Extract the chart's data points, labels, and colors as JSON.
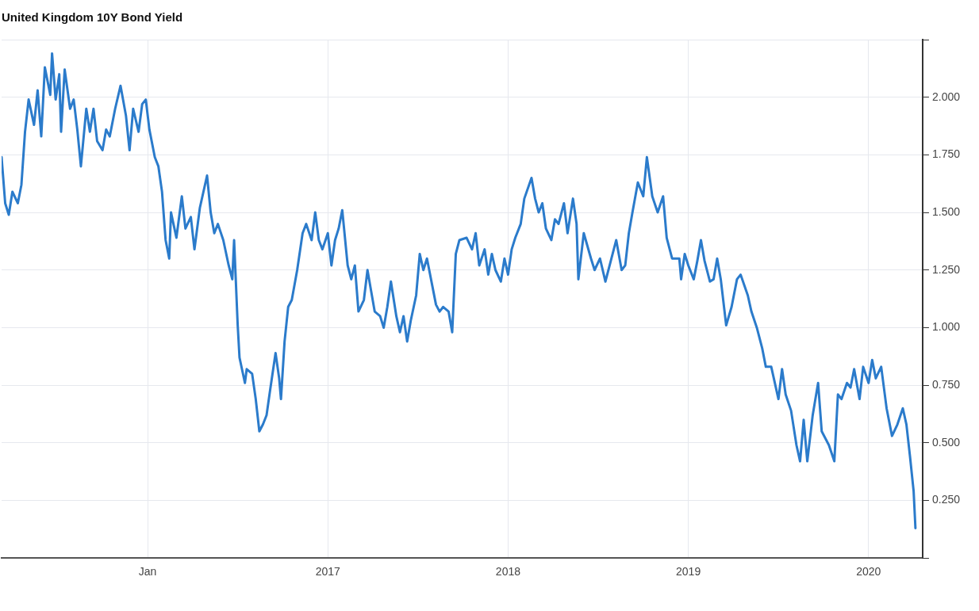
{
  "chart_data": {
    "type": "line",
    "title": "United Kingdom 10Y Bond Yield",
    "color": "#2b7bcb",
    "marker": "none",
    "line_style": "solid",
    "grid": true,
    "legend": false,
    "xlim": [
      2015.19,
      2020.3
    ],
    "xticks": [
      {
        "value": 2016,
        "label": "Jan"
      },
      {
        "value": 2017,
        "label": "2017"
      },
      {
        "value": 2018,
        "label": "2018"
      },
      {
        "value": 2019,
        "label": "2019"
      },
      {
        "value": 2020,
        "label": "2020"
      }
    ],
    "ylim": [
      0,
      2.25
    ],
    "yticks": [
      {
        "value": 0,
        "label": null
      },
      {
        "value": 0.25,
        "label": "0.250"
      },
      {
        "value": 0.5,
        "label": "0.500"
      },
      {
        "value": 0.75,
        "label": "0.750"
      },
      {
        "value": 1,
        "label": "1.000"
      },
      {
        "value": 1.25,
        "label": "1.250"
      },
      {
        "value": 1.5,
        "label": "1.500"
      },
      {
        "value": 1.75,
        "label": "1.750"
      },
      {
        "value": 2,
        "label": "2.000"
      },
      {
        "value": 2.25,
        "label": null
      }
    ],
    "x": [
      2015.19,
      2015.21,
      2015.23,
      2015.25,
      2015.28,
      2015.3,
      2015.32,
      2015.34,
      2015.37,
      2015.39,
      2015.41,
      2015.43,
      2015.46,
      2015.47,
      2015.49,
      2015.51,
      2015.52,
      2015.54,
      2015.57,
      2015.59,
      2015.61,
      2015.63,
      2015.66,
      2015.68,
      2015.7,
      2015.72,
      2015.75,
      2015.77,
      2015.79,
      2015.82,
      2015.85,
      2015.88,
      2015.9,
      2015.92,
      2015.95,
      2015.97,
      2015.99,
      2016.01,
      2016.04,
      2016.06,
      2016.08,
      2016.1,
      2016.12,
      2016.13,
      2016.16,
      2016.19,
      2016.21,
      2016.24,
      2016.26,
      2016.29,
      2016.33,
      2016.35,
      2016.37,
      2016.39,
      2016.42,
      2016.45,
      2016.47,
      2016.48,
      2016.5,
      2016.51,
      2016.54,
      2016.55,
      2016.58,
      2016.6,
      2016.62,
      2016.64,
      2016.66,
      2016.68,
      2016.71,
      2016.73,
      2016.74,
      2016.76,
      2016.78,
      2016.8,
      2016.83,
      2016.86,
      2016.88,
      2016.91,
      2016.93,
      2016.95,
      2016.97,
      2017.0,
      2017.02,
      2017.04,
      2017.06,
      2017.08,
      2017.11,
      2017.13,
      2017.15,
      2017.17,
      2017.2,
      2017.22,
      2017.24,
      2017.26,
      2017.29,
      2017.31,
      2017.33,
      2017.35,
      2017.38,
      2017.4,
      2017.42,
      2017.44,
      2017.46,
      2017.49,
      2017.51,
      2017.53,
      2017.55,
      2017.58,
      2017.6,
      2017.62,
      2017.64,
      2017.67,
      2017.69,
      2017.71,
      2017.73,
      2017.77,
      2017.8,
      2017.82,
      2017.84,
      2017.87,
      2017.89,
      2017.91,
      2017.93,
      2017.96,
      2017.98,
      2018.0,
      2018.02,
      2018.04,
      2018.07,
      2018.09,
      2018.13,
      2018.15,
      2018.17,
      2018.19,
      2018.21,
      2018.24,
      2018.26,
      2018.28,
      2018.31,
      2018.33,
      2018.36,
      2018.38,
      2018.39,
      2018.42,
      2018.46,
      2018.48,
      2018.51,
      2018.54,
      2018.57,
      2018.6,
      2018.63,
      2018.65,
      2018.67,
      2018.69,
      2018.72,
      2018.75,
      2018.77,
      2018.8,
      2018.83,
      2018.86,
      2018.88,
      2018.91,
      2018.95,
      2018.96,
      2018.98,
      2019.0,
      2019.03,
      2019.05,
      2019.07,
      2019.09,
      2019.12,
      2019.14,
      2019.16,
      2019.18,
      2019.21,
      2019.24,
      2019.27,
      2019.29,
      2019.33,
      2019.35,
      2019.38,
      2019.41,
      2019.43,
      2019.46,
      2019.5,
      2019.52,
      2019.54,
      2019.57,
      2019.6,
      2019.62,
      2019.64,
      2019.66,
      2019.69,
      2019.72,
      2019.74,
      2019.78,
      2019.81,
      2019.83,
      2019.85,
      2019.88,
      2019.9,
      2019.92,
      2019.95,
      2019.97,
      2020.0,
      2020.02,
      2020.04,
      2020.07,
      2020.1,
      2020.13,
      2020.16,
      2020.19,
      2020.21,
      2020.23,
      2020.25,
      2020.26
    ],
    "values": [
      1.74,
      1.54,
      1.49,
      1.59,
      1.54,
      1.62,
      1.85,
      1.99,
      1.88,
      2.03,
      1.83,
      2.13,
      2.01,
      2.19,
      1.99,
      2.1,
      1.85,
      2.12,
      1.95,
      1.99,
      1.86,
      1.7,
      1.95,
      1.85,
      1.95,
      1.81,
      1.77,
      1.86,
      1.83,
      1.95,
      2.05,
      1.92,
      1.77,
      1.95,
      1.85,
      1.97,
      1.99,
      1.86,
      1.74,
      1.7,
      1.59,
      1.38,
      1.3,
      1.5,
      1.39,
      1.57,
      1.43,
      1.48,
      1.34,
      1.52,
      1.66,
      1.5,
      1.41,
      1.45,
      1.38,
      1.27,
      1.21,
      1.38,
      1.01,
      0.87,
      0.76,
      0.82,
      0.8,
      0.69,
      0.55,
      0.58,
      0.62,
      0.73,
      0.89,
      0.78,
      0.69,
      0.94,
      1.09,
      1.12,
      1.25,
      1.41,
      1.45,
      1.38,
      1.5,
      1.38,
      1.34,
      1.41,
      1.27,
      1.38,
      1.43,
      1.51,
      1.27,
      1.21,
      1.27,
      1.07,
      1.12,
      1.25,
      1.16,
      1.07,
      1.05,
      1.0,
      1.09,
      1.2,
      1.05,
      0.98,
      1.05,
      0.94,
      1.03,
      1.14,
      1.32,
      1.25,
      1.3,
      1.18,
      1.1,
      1.07,
      1.09,
      1.07,
      0.98,
      1.32,
      1.38,
      1.39,
      1.34,
      1.41,
      1.27,
      1.34,
      1.23,
      1.32,
      1.25,
      1.2,
      1.3,
      1.23,
      1.34,
      1.39,
      1.45,
      1.56,
      1.65,
      1.56,
      1.5,
      1.54,
      1.43,
      1.38,
      1.47,
      1.45,
      1.54,
      1.41,
      1.56,
      1.45,
      1.21,
      1.41,
      1.3,
      1.25,
      1.3,
      1.2,
      1.29,
      1.38,
      1.25,
      1.27,
      1.41,
      1.5,
      1.63,
      1.57,
      1.74,
      1.57,
      1.5,
      1.57,
      1.39,
      1.3,
      1.3,
      1.21,
      1.32,
      1.27,
      1.21,
      1.29,
      1.38,
      1.29,
      1.2,
      1.21,
      1.3,
      1.21,
      1.01,
      1.09,
      1.21,
      1.23,
      1.14,
      1.07,
      1.0,
      0.91,
      0.83,
      0.83,
      0.69,
      0.82,
      0.71,
      0.64,
      0.49,
      0.42,
      0.6,
      0.42,
      0.62,
      0.76,
      0.55,
      0.49,
      0.42,
      0.71,
      0.69,
      0.76,
      0.74,
      0.82,
      0.69,
      0.83,
      0.76,
      0.86,
      0.78,
      0.83,
      0.65,
      0.53,
      0.58,
      0.65,
      0.58,
      0.44,
      0.29,
      0.13
    ]
  }
}
